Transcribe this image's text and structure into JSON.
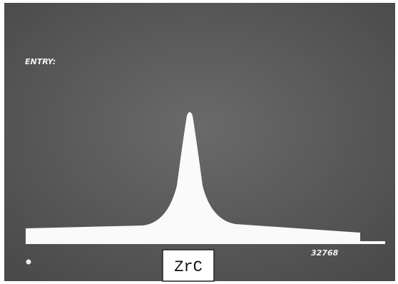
{
  "screen": {
    "entry_label": "ENTRY:",
    "scale_max": "32768"
  },
  "sample_label": "ZrC"
}
